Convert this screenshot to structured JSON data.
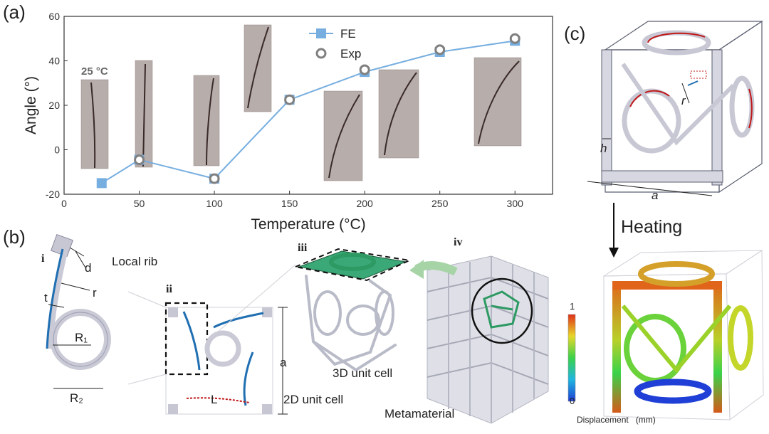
{
  "panels": {
    "a": "(a)",
    "b": "(b)",
    "c": "(c)"
  },
  "chart_data": {
    "type": "line",
    "xlabel": "Temperature (°C)",
    "ylabel": "Angle (°)",
    "xlim": [
      0,
      325
    ],
    "ylim": [
      -20,
      60
    ],
    "xticks": [
      0,
      50,
      100,
      150,
      200,
      250,
      300
    ],
    "yticks": [
      -20,
      0,
      20,
      40,
      60
    ],
    "legend_position": "top-center",
    "series": [
      {
        "name": "FE",
        "style": "line-square",
        "color": "#76aee0",
        "x": [
          25,
          50,
          100,
          150,
          200,
          250,
          300
        ],
        "y": [
          -15,
          -4.5,
          -13,
          22.5,
          35,
          44,
          49
        ]
      },
      {
        "name": "Exp",
        "style": "hollow-circle",
        "color": "#808080",
        "x": [
          50,
          100,
          150,
          200,
          250,
          300
        ],
        "y": [
          -4.5,
          -13,
          22.5,
          36,
          45,
          50
        ]
      }
    ],
    "annotations": [
      "25 °C"
    ]
  },
  "panel_b": {
    "sub_i": "i",
    "sub_ii": "ii",
    "sub_iii": "iii",
    "sub_iv": "iv",
    "local_rib": "Local rib",
    "dim_d": "d",
    "dim_t": "t",
    "dim_r": "r",
    "dim_R1": "R₁",
    "dim_R2": "R₂",
    "dim_a": "a",
    "dim_L": "L",
    "cap_2d": "2D unit cell",
    "cap_3d": "3D unit cell",
    "cap_meta": "Metamaterial"
  },
  "panel_c": {
    "dim_r": "r",
    "dim_h": "h",
    "dim_a": "a",
    "heating": "Heating",
    "colorbar_max": "1",
    "colorbar_min": "0",
    "colorbar_label": "Displacement   (mm)"
  },
  "colors": {
    "fe_line": "#76aee0",
    "exp_marker": "#808080",
    "rib_blue": "#1f6fb2",
    "rib_red": "#c01818",
    "highlight_green": "#2e9a63"
  }
}
